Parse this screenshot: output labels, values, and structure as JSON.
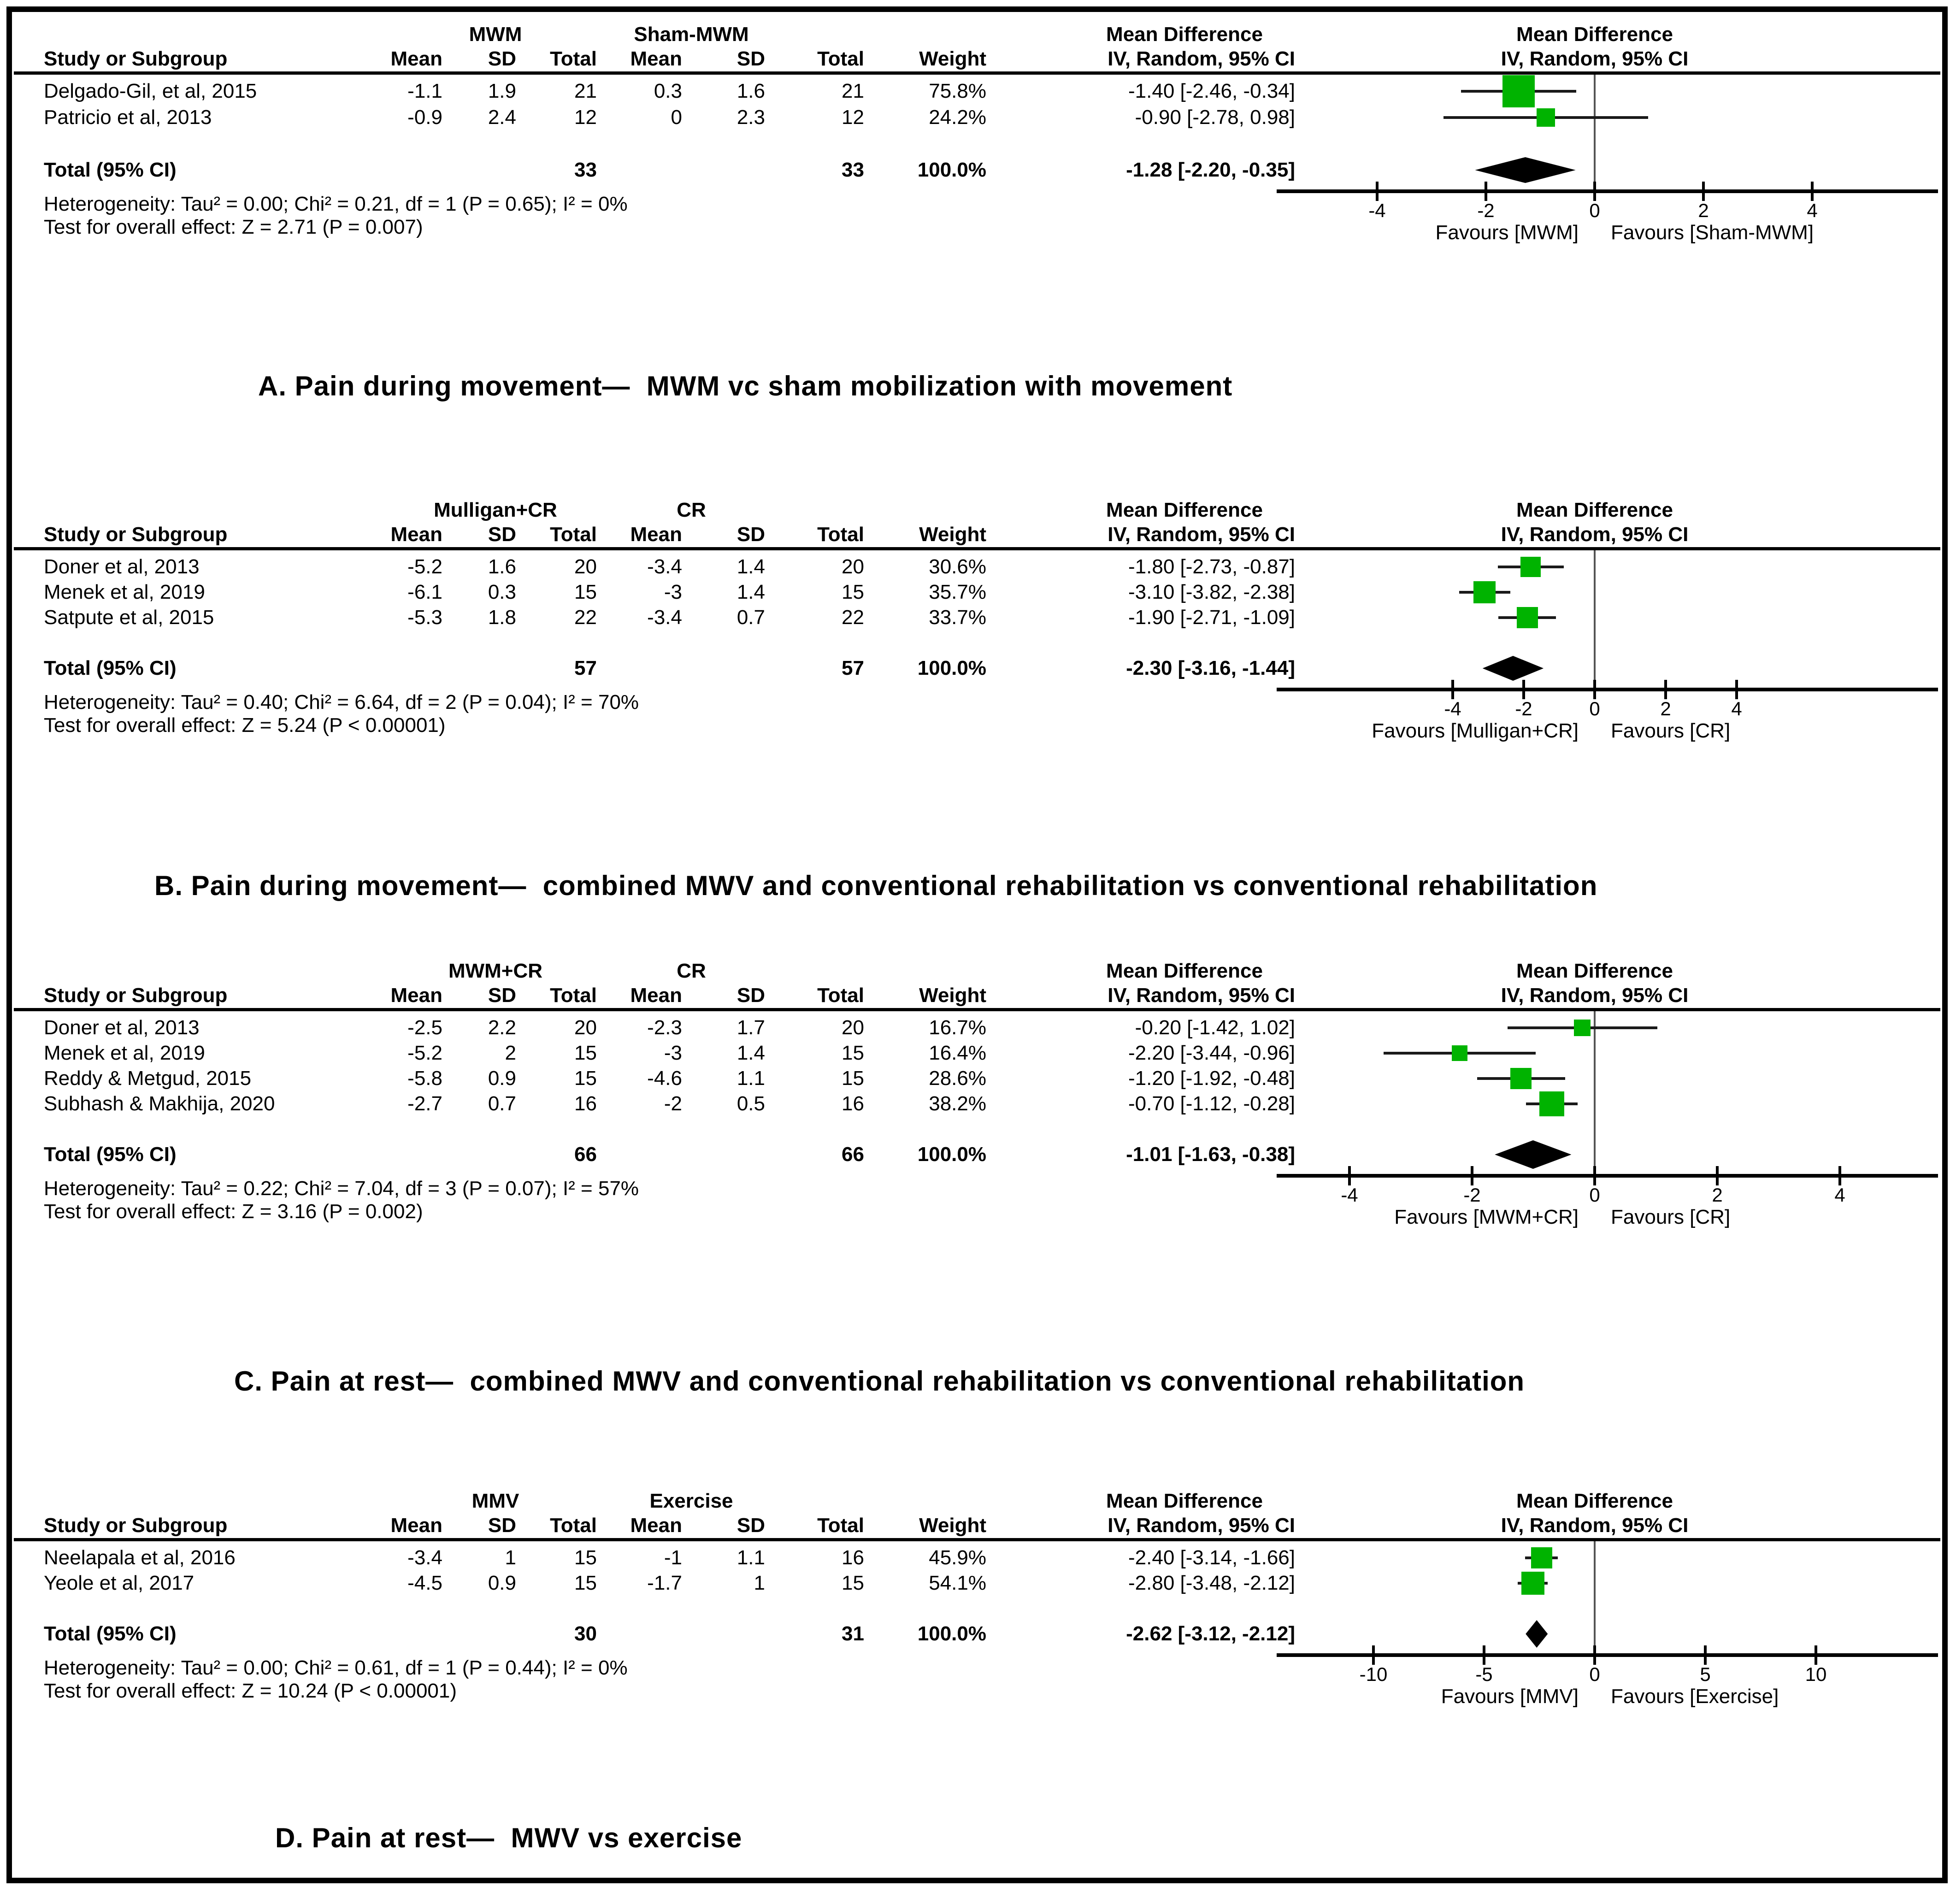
{
  "figure_title": "Forest plots of mean difference (IV, Random, 95% CI)",
  "colors": {
    "square_green": "#00b300",
    "diamond_black": "#000000",
    "ci_line": "#1a1a1a",
    "zero_line": "#555555",
    "text": "#000000"
  },
  "columns": {
    "study": "Study or Subgroup",
    "mean": "Mean",
    "sd": "SD",
    "total": "Total",
    "weight": "Weight",
    "md_label": "Mean Difference",
    "iv_label": "IV, Random, 95% CI"
  },
  "chart_data": [
    {
      "type": "forest",
      "id": "A",
      "group1": "MWM",
      "group2": "Sham-MWM",
      "studies": [
        {
          "name": "Delgado-Gil, et al, 2015",
          "mean1": "-1.1",
          "sd1": "1.9",
          "total1": "21",
          "mean2": "0.3",
          "sd2": "1.6",
          "total2": "21",
          "weight": "75.8%",
          "ci_text": "-1.40 [-2.46, -0.34]",
          "est": -1.4,
          "lo": -2.46,
          "hi": -0.34,
          "sq": 70
        },
        {
          "name": "Patricio et al, 2013",
          "mean1": "-0.9",
          "sd1": "2.4",
          "total1": "12",
          "mean2": "0",
          "sd2": "2.3",
          "total2": "12",
          "weight": "24.2%",
          "ci_text": "-0.90 [-2.78, 0.98]",
          "est": -0.9,
          "lo": -2.78,
          "hi": 0.98,
          "sq": 40
        }
      ],
      "total_label": "Total (95% CI)",
      "total1": "33",
      "total2": "33",
      "total_weight": "100.0%",
      "total_ci_text": "-1.28 [-2.20, -0.35]",
      "total_est": -1.28,
      "total_lo": -2.2,
      "total_hi": -0.35,
      "heterogeneity": "Heterogeneity: Tau² = 0.00; Chi² = 0.21, df = 1 (P = 0.65); I² = 0%",
      "overall_test": "Test for overall effect: Z = 2.71 (P = 0.007)",
      "ticks": [
        -4,
        -2,
        0,
        2,
        4
      ],
      "favours_left": "Favours [MWM]",
      "favours_right": "Favours [Sham-MWM]",
      "caption": "A. Pain during movement—  MWM vc sham mobilization with movement"
    },
    {
      "type": "forest",
      "id": "B",
      "group1": "Mulligan+CR",
      "group2": "CR",
      "studies": [
        {
          "name": "Doner et al, 2013",
          "mean1": "-5.2",
          "sd1": "1.6",
          "total1": "20",
          "mean2": "-3.4",
          "sd2": "1.4",
          "total2": "20",
          "weight": "30.6%",
          "ci_text": "-1.80 [-2.73, -0.87]",
          "est": -1.8,
          "lo": -2.73,
          "hi": -0.87,
          "sq": 44
        },
        {
          "name": "Menek et al, 2019",
          "mean1": "-6.1",
          "sd1": "0.3",
          "total1": "15",
          "mean2": "-3",
          "sd2": "1.4",
          "total2": "15",
          "weight": "35.7%",
          "ci_text": "-3.10 [-3.82, -2.38]",
          "est": -3.1,
          "lo": -3.82,
          "hi": -2.38,
          "sq": 48
        },
        {
          "name": "Satpute et al, 2015",
          "mean1": "-5.3",
          "sd1": "1.8",
          "total1": "22",
          "mean2": "-3.4",
          "sd2": "0.7",
          "total2": "22",
          "weight": "33.7%",
          "ci_text": "-1.90 [-2.71, -1.09]",
          "est": -1.9,
          "lo": -2.71,
          "hi": -1.09,
          "sq": 46
        }
      ],
      "total_label": "Total (95% CI)",
      "total1": "57",
      "total2": "57",
      "total_weight": "100.0%",
      "total_ci_text": "-2.30 [-3.16, -1.44]",
      "total_est": -2.3,
      "total_lo": -3.16,
      "total_hi": -1.44,
      "heterogeneity": "Heterogeneity: Tau² = 0.40; Chi² = 6.64, df = 2 (P = 0.04); I² = 70%",
      "overall_test": "Test for overall effect: Z = 5.24 (P < 0.00001)",
      "ticks": [
        -4,
        -2,
        0,
        2,
        4
      ],
      "favours_left": "Favours [Mulligan+CR]",
      "favours_right": "Favours [CR]",
      "caption": "B. Pain during movement—  combined MWV and conventional rehabilitation vs conventional rehabilitation"
    },
    {
      "type": "forest",
      "id": "C",
      "group1": "MWM+CR",
      "group2": "CR",
      "studies": [
        {
          "name": "Doner et al, 2013",
          "mean1": "-2.5",
          "sd1": "2.2",
          "total1": "20",
          "mean2": "-2.3",
          "sd2": "1.7",
          "total2": "20",
          "weight": "16.7%",
          "ci_text": "-0.20 [-1.42, 1.02]",
          "est": -0.2,
          "lo": -1.42,
          "hi": 1.02,
          "sq": 36
        },
        {
          "name": "Menek et al, 2019",
          "mean1": "-5.2",
          "sd1": "2",
          "total1": "15",
          "mean2": "-3",
          "sd2": "1.4",
          "total2": "15",
          "weight": "16.4%",
          "ci_text": "-2.20 [-3.44, -0.96]",
          "est": -2.2,
          "lo": -3.44,
          "hi": -0.96,
          "sq": 34
        },
        {
          "name": "Reddy & Metgud, 2015",
          "mean1": "-5.8",
          "sd1": "0.9",
          "total1": "15",
          "mean2": "-4.6",
          "sd2": "1.1",
          "total2": "15",
          "weight": "28.6%",
          "ci_text": "-1.20 [-1.92, -0.48]",
          "est": -1.2,
          "lo": -1.92,
          "hi": -0.48,
          "sq": 46
        },
        {
          "name": "Subhash & Makhija, 2020",
          "mean1": "-2.7",
          "sd1": "0.7",
          "total1": "16",
          "mean2": "-2",
          "sd2": "0.5",
          "total2": "16",
          "weight": "38.2%",
          "ci_text": "-0.70 [-1.12, -0.28]",
          "est": -0.7,
          "lo": -1.12,
          "hi": -0.28,
          "sq": 54
        }
      ],
      "total_label": "Total (95% CI)",
      "total1": "66",
      "total2": "66",
      "total_weight": "100.0%",
      "total_ci_text": "-1.01 [-1.63, -0.38]",
      "total_est": -1.01,
      "total_lo": -1.63,
      "total_hi": -0.38,
      "heterogeneity": "Heterogeneity: Tau² = 0.22; Chi² = 7.04, df = 3 (P = 0.07); I² = 57%",
      "overall_test": "Test for overall effect: Z = 3.16 (P = 0.002)",
      "ticks": [
        -4,
        -2,
        0,
        2,
        4
      ],
      "favours_left": "Favours [MWM+CR]",
      "favours_right": "Favours [CR]",
      "caption": "C. Pain at rest—  combined MWV and conventional rehabilitation vs conventional rehabilitation"
    },
    {
      "type": "forest",
      "id": "D",
      "group1": "MMV",
      "group2": "Exercise",
      "studies": [
        {
          "name": "Neelapala et al, 2016",
          "mean1": "-3.4",
          "sd1": "1",
          "total1": "15",
          "mean2": "-1",
          "sd2": "1.1",
          "total2": "16",
          "weight": "45.9%",
          "ci_text": "-2.40 [-3.14, -1.66]",
          "est": -2.4,
          "lo": -3.14,
          "hi": -1.66,
          "sq": 46
        },
        {
          "name": "Yeole et al, 2017",
          "mean1": "-4.5",
          "sd1": "0.9",
          "total1": "15",
          "mean2": "-1.7",
          "sd2": "1",
          "total2": "15",
          "weight": "54.1%",
          "ci_text": "-2.80 [-3.48, -2.12]",
          "est": -2.8,
          "lo": -3.48,
          "hi": -2.12,
          "sq": 50
        }
      ],
      "total_label": "Total (95% CI)",
      "total1": "30",
      "total2": "31",
      "total_weight": "100.0%",
      "total_ci_text": "-2.62 [-3.12, -2.12]",
      "total_est": -2.62,
      "total_lo": -3.12,
      "total_hi": -2.12,
      "heterogeneity": "Heterogeneity: Tau² = 0.00; Chi² = 0.61, df = 1 (P = 0.44); I² = 0%",
      "overall_test": "Test for overall effect: Z = 10.24 (P < 0.00001)",
      "ticks": [
        -10,
        -5,
        0,
        5,
        10
      ],
      "favours_left": "Favours [MMV]",
      "favours_right": "Favours [Exercise]",
      "caption": "D. Pain at rest—  MWV vs exercise"
    }
  ]
}
